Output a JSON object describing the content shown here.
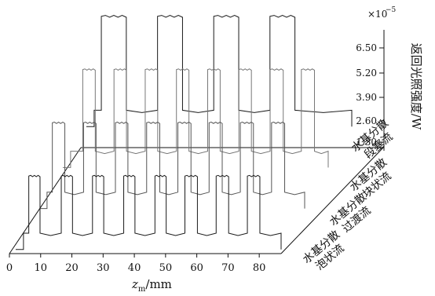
{
  "chart_data": {
    "type": "line",
    "chart_style": "3d-waterfall",
    "x": {
      "label_main": "z",
      "label_sub": "m",
      "label_unit": "/mm",
      "ticks": [
        0,
        10,
        20,
        30,
        40,
        50,
        60,
        70,
        80
      ],
      "range": [
        0,
        87
      ]
    },
    "y": {
      "label": "返回光照强度/W",
      "multiplier": "×10",
      "exponent": "−5",
      "ticks": [
        "1.30",
        "2.60",
        "3.90",
        "5.20",
        "6.50"
      ],
      "range": [
        1.3,
        6.5
      ]
    },
    "depth_labels": [
      [
        "水基分散",
        "泡状流"
      ],
      [
        "水基分散",
        "过渡流"
      ],
      [
        "水基分散",
        "块状流"
      ],
      [
        "水基分散",
        "段塞流"
      ]
    ],
    "series": [
      {
        "depth": 0,
        "baseline": 0.2,
        "high": 3.8,
        "mid": 1.0,
        "pulses": [
          [
            6.2,
            9.8
          ],
          [
            16.6,
            20.2
          ],
          [
            26.6,
            30.2
          ],
          [
            36.6,
            40.2
          ],
          [
            46.6,
            50.2
          ],
          [
            56.2,
            60.2
          ],
          [
            66.2,
            70.2
          ],
          [
            76.2,
            80.2
          ]
        ]
      },
      {
        "depth": 1,
        "baseline": 0.4,
        "high": 4.6,
        "mid": 1.2,
        "pulses": [
          [
            6.2,
            10.2
          ],
          [
            16.2,
            20.2
          ],
          [
            26.4,
            30.4
          ],
          [
            36.4,
            40.6
          ],
          [
            46.4,
            50.6
          ],
          [
            56.4,
            60.6
          ],
          [
            66.4,
            70.6
          ],
          [
            76.4,
            80.6
          ]
        ]
      },
      {
        "depth": 2,
        "baseline": 0.6,
        "high": 5.4,
        "mid": 1.4,
        "pulses": [
          [
            8.4,
            12.4
          ],
          [
            18.4,
            22.4
          ],
          [
            28.4,
            32.4
          ],
          [
            38.4,
            42.4
          ],
          [
            48.4,
            52.4
          ],
          [
            58.4,
            62.4
          ],
          [
            68.4,
            72.6
          ],
          [
            78.4,
            82.6
          ]
        ]
      },
      {
        "depth": 3,
        "baseline": 0.8,
        "high": 6.2,
        "mid": 1.6,
        "pulses": [
          [
            6.8,
            14.8
          ],
          [
            24.8,
            32.8
          ],
          [
            42.8,
            50.8
          ],
          [
            60.8,
            68.8
          ]
        ]
      }
    ]
  }
}
